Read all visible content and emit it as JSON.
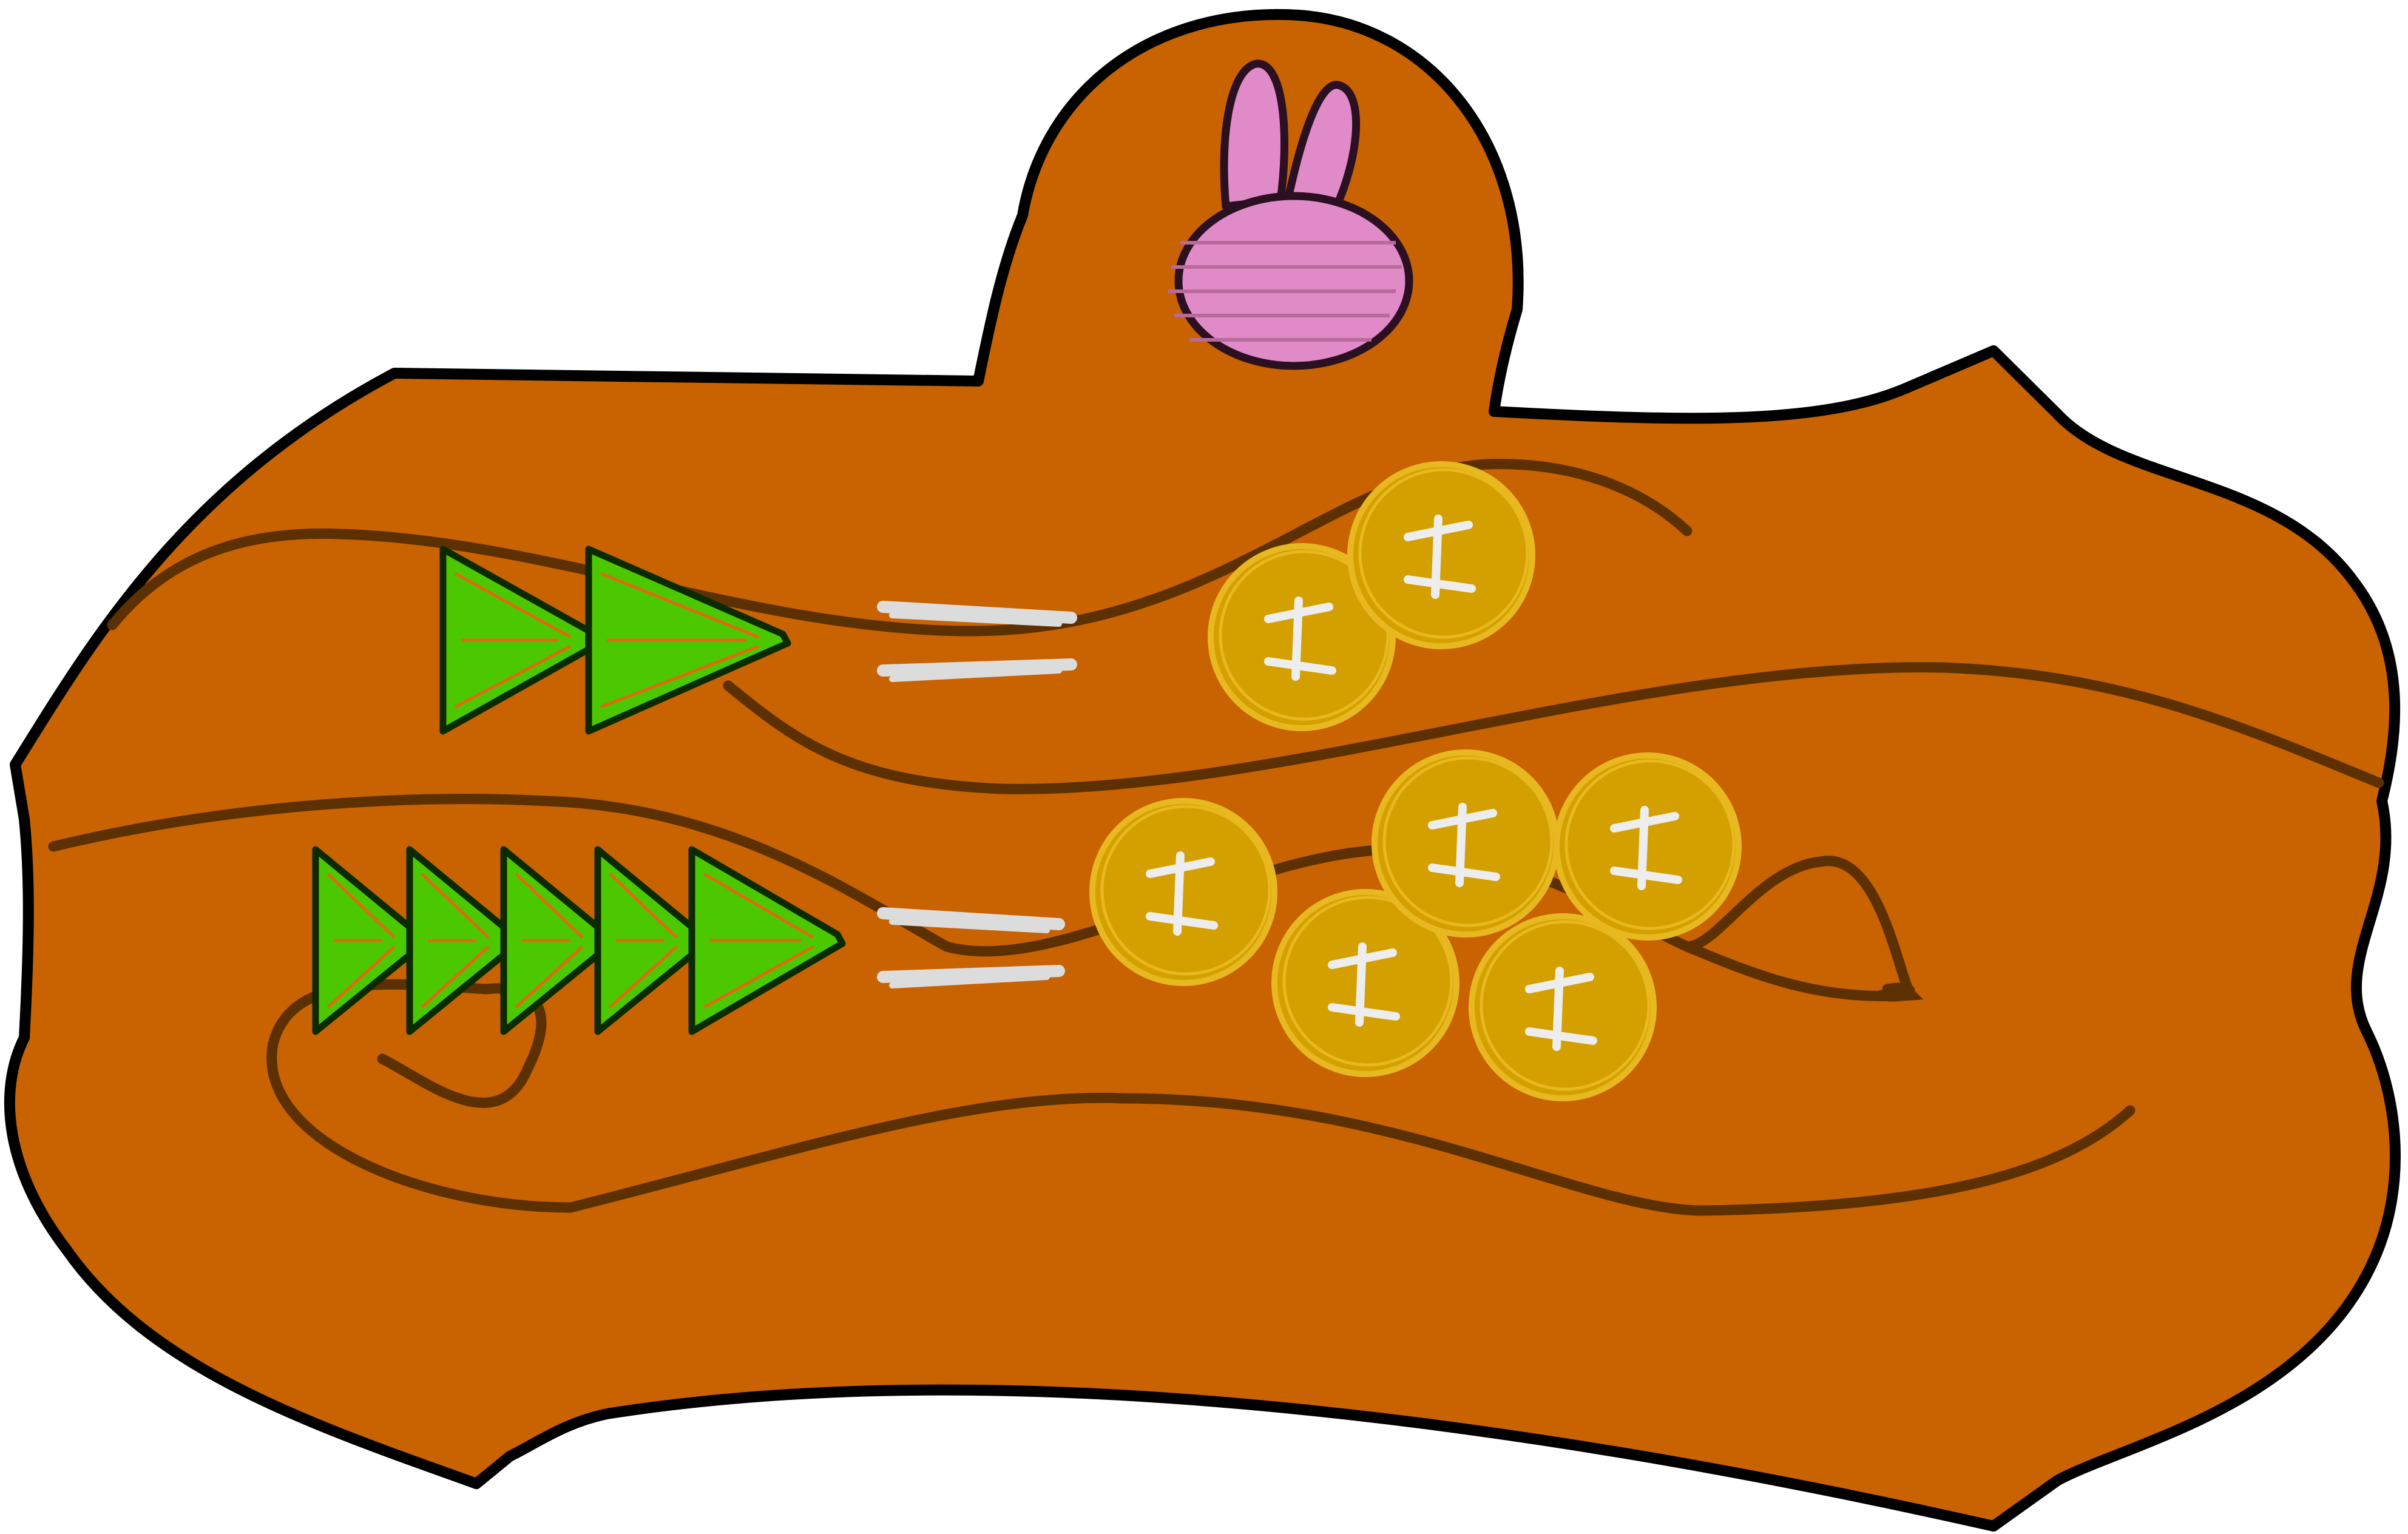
{
  "scene": {
    "colors": {
      "background": "#ffffff",
      "board_fill": "#c96200",
      "board_outline": "#000000",
      "grain_line": "#5c3000",
      "arrow_fill": "#4cc800",
      "arrow_outline": "#0c2a00",
      "equals_sign": "#dcdcdc",
      "coin_fill": "#d4a000",
      "coin_edge": "#e8b820",
      "coin_mark": "#ededed",
      "rabbit_fill": "#e08ac8",
      "rabbit_outline": "#2a1020"
    },
    "rabbit": {
      "icon": "rabbit-head-icon"
    },
    "trades": [
      {
        "arrow_count": 2,
        "coin_count": 2
      },
      {
        "arrow_count": 5,
        "coin_count": 5
      }
    ]
  }
}
